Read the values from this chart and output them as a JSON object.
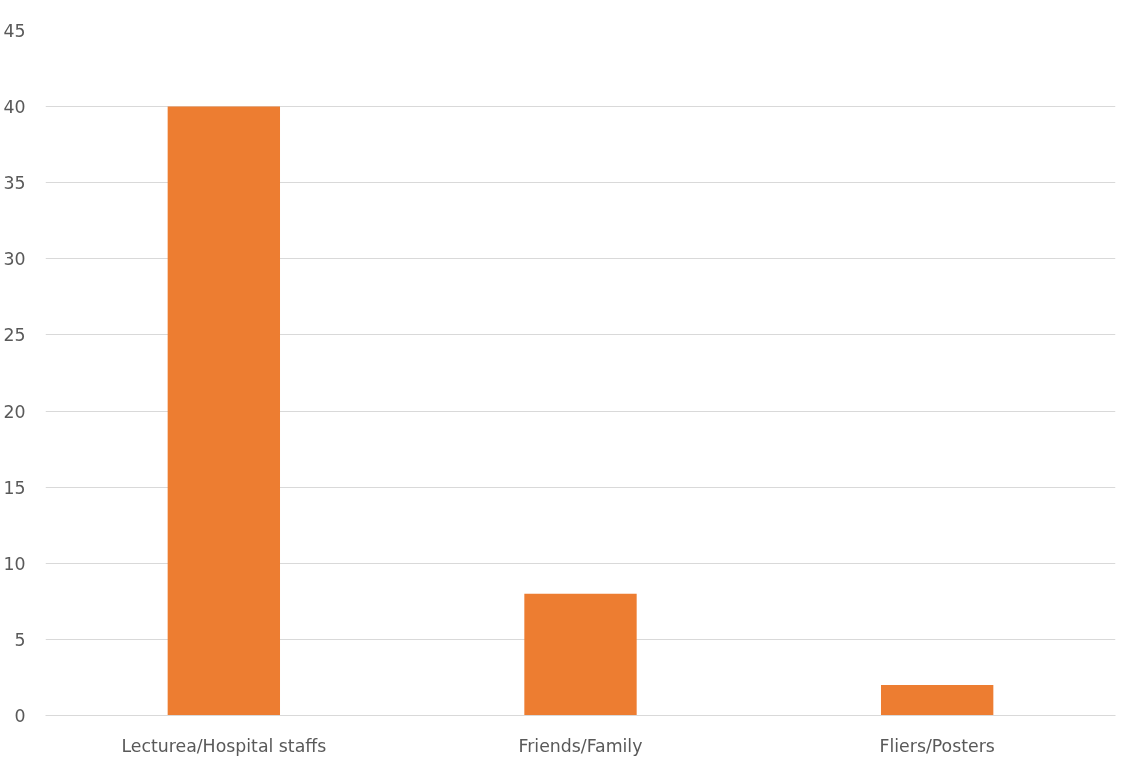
{
  "chart_data": {
    "type": "bar",
    "categories": [
      "Lecturea/Hospital staffs",
      "Friends/Family",
      "Fliers/Posters"
    ],
    "values": [
      40,
      8,
      2
    ],
    "color": "#ed7d31",
    "ylim": [
      0,
      45
    ],
    "yticks": [
      0,
      5,
      10,
      15,
      20,
      25,
      30,
      35,
      40,
      45
    ],
    "grid": "y"
  }
}
